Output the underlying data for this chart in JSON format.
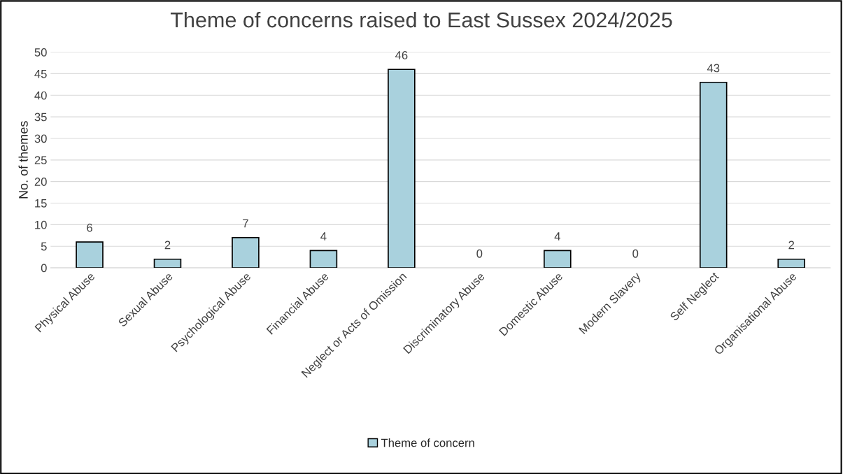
{
  "chart_data": {
    "type": "bar",
    "title": "Theme of concerns raised to East Sussex 2024/2025",
    "ylabel": "No. of themes",
    "categories": [
      "Physical Abuse",
      "Sexual Abuse",
      "Psychological Abuse",
      "Financial Abuse",
      "Neglect or Acts of Omission",
      "Discriminatory Abuse",
      "Domestic Abuse",
      "Modern Slavery",
      "Self Neglect",
      "Organisational Abuse"
    ],
    "series": [
      {
        "name": "Theme of concern",
        "color": "#a9d1dd",
        "values": [
          6,
          2,
          7,
          4,
          46,
          0,
          4,
          0,
          43,
          2
        ]
      }
    ],
    "ylim": [
      0,
      50
    ],
    "yticks": [
      0,
      5,
      10,
      15,
      20,
      25,
      30,
      35,
      40,
      45,
      50
    ],
    "grid": "y",
    "legend": "bottom",
    "data_labels": true
  }
}
